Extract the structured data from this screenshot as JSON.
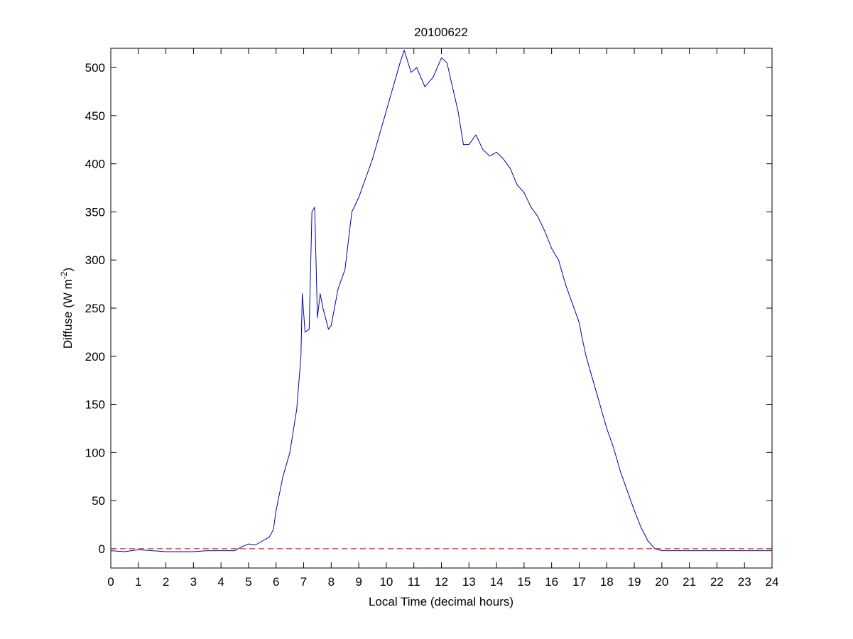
{
  "chart_data": {
    "type": "line",
    "title": "20100622",
    "xlabel": "Local Time (decimal hours)",
    "ylabel": {
      "text": "Diffuse (W m",
      "sup": "-2",
      "tail": ")"
    },
    "x": [
      0,
      0.5,
      1,
      1.5,
      2,
      2.5,
      3,
      3.5,
      4,
      4.5,
      4.75,
      5,
      5.25,
      5.5,
      5.75,
      5.9,
      6,
      6.25,
      6.5,
      6.6,
      6.75,
      6.9,
      6.95,
      7.05,
      7.2,
      7.3,
      7.4,
      7.5,
      7.6,
      7.7,
      7.9,
      8,
      8.25,
      8.5,
      8.75,
      9,
      9.25,
      9.5,
      9.75,
      10,
      10.25,
      10.5,
      10.65,
      10.9,
      11.1,
      11.4,
      11.7,
      12,
      12.2,
      12.4,
      12.6,
      12.8,
      13,
      13.25,
      13.5,
      13.75,
      14,
      14.25,
      14.5,
      14.75,
      15,
      15.25,
      15.5,
      15.75,
      16,
      16.25,
      16.5,
      16.75,
      17,
      17.1,
      17.25,
      17.5,
      17.75,
      18,
      18.25,
      18.5,
      18.75,
      19,
      19.25,
      19.5,
      19.75,
      20,
      20.5,
      21,
      21.5,
      22,
      22.5,
      23,
      23.5,
      24
    ],
    "series": [
      {
        "color": "#0000b4",
        "values": [
          -2,
          -3,
          -1,
          -2,
          -3,
          -3,
          -3,
          -2,
          -2,
          -2,
          2,
          5,
          4,
          8,
          12,
          20,
          40,
          75,
          100,
          118,
          145,
          200,
          265,
          225,
          228,
          350,
          355,
          240,
          265,
          250,
          228,
          232,
          270,
          290,
          350,
          365,
          385,
          405,
          430,
          455,
          480,
          505,
          518,
          495,
          500,
          480,
          490,
          510,
          505,
          480,
          455,
          420,
          420,
          430,
          415,
          408,
          412,
          405,
          395,
          378,
          370,
          355,
          345,
          330,
          312,
          300,
          275,
          255,
          235,
          220,
          200,
          175,
          150,
          125,
          105,
          80,
          60,
          40,
          22,
          8,
          0,
          -2,
          -2,
          -2,
          -2,
          -2,
          -2,
          -2,
          -2,
          -2
        ]
      }
    ],
    "reference_line": {
      "value": 0,
      "color": "#cc0000"
    },
    "xlim": [
      0,
      24
    ],
    "xticks": [
      0,
      1,
      2,
      3,
      4,
      5,
      6,
      7,
      8,
      9,
      10,
      11,
      12,
      13,
      14,
      15,
      16,
      17,
      18,
      19,
      20,
      21,
      22,
      23,
      24
    ],
    "ylim": [
      -20,
      520
    ],
    "yticks": [
      0,
      50,
      100,
      150,
      200,
      250,
      300,
      350,
      400,
      450,
      500
    ]
  }
}
